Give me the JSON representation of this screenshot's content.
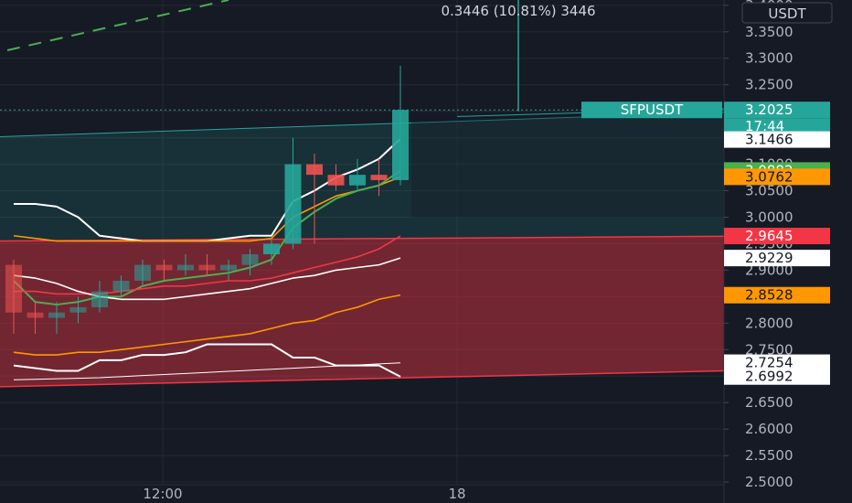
{
  "chart_data": {
    "type": "candlestick",
    "symbol": "SFPUSDT",
    "currency": "USDT",
    "measure_text": "0.3446 (10.81%) 3446",
    "countdown": "17:44",
    "x_tick_labels": [
      "12:00",
      "18"
    ],
    "y_tick_labels": [
      "3.4000",
      "3.3500",
      "3.3000",
      "3.2500",
      "3.2000",
      "3.1500",
      "3.1000",
      "3.0500",
      "3.0000",
      "2.9500",
      "2.9000",
      "2.8500",
      "2.8000",
      "2.7500",
      "2.7000",
      "2.6500",
      "2.6000",
      "2.5500",
      "2.5000"
    ],
    "y_range": [
      2.495,
      3.41
    ],
    "candles": [
      {
        "o": 2.91,
        "h": 2.92,
        "l": 2.78,
        "c": 2.82
      },
      {
        "o": 2.82,
        "h": 2.84,
        "l": 2.78,
        "c": 2.81
      },
      {
        "o": 2.81,
        "h": 2.84,
        "l": 2.78,
        "c": 2.82
      },
      {
        "o": 2.82,
        "h": 2.85,
        "l": 2.8,
        "c": 2.83
      },
      {
        "o": 2.83,
        "h": 2.88,
        "l": 2.82,
        "c": 2.86
      },
      {
        "o": 2.86,
        "h": 2.89,
        "l": 2.85,
        "c": 2.88
      },
      {
        "o": 2.88,
        "h": 2.92,
        "l": 2.87,
        "c": 2.91
      },
      {
        "o": 2.91,
        "h": 2.92,
        "l": 2.88,
        "c": 2.9
      },
      {
        "o": 2.9,
        "h": 2.93,
        "l": 2.89,
        "c": 2.91
      },
      {
        "o": 2.91,
        "h": 2.93,
        "l": 2.89,
        "c": 2.9
      },
      {
        "o": 2.9,
        "h": 2.92,
        "l": 2.88,
        "c": 2.91
      },
      {
        "o": 2.91,
        "h": 2.94,
        "l": 2.89,
        "c": 2.93
      },
      {
        "o": 2.93,
        "h": 2.96,
        "l": 2.91,
        "c": 2.95
      },
      {
        "o": 2.95,
        "h": 3.15,
        "l": 2.94,
        "c": 3.1
      },
      {
        "o": 3.1,
        "h": 3.12,
        "l": 2.95,
        "c": 3.08
      },
      {
        "o": 3.08,
        "h": 3.1,
        "l": 3.05,
        "c": 3.06
      },
      {
        "o": 3.06,
        "h": 3.11,
        "l": 3.05,
        "c": 3.08
      },
      {
        "o": 3.08,
        "h": 3.11,
        "l": 3.04,
        "c": 3.07
      },
      {
        "o": 3.07,
        "h": 3.286,
        "l": 3.06,
        "c": 3.2025
      }
    ],
    "channel_upper": {
      "top_line": [
        3.152,
        3.198
      ],
      "bottom_line": [
        2.955,
        2.964
      ],
      "color": "#26a69a"
    },
    "channel_lower": {
      "top_line": [
        2.955,
        2.964
      ],
      "bottom_line": [
        2.68,
        2.71
      ],
      "color": "#f23645"
    },
    "price_badges": [
      {
        "label": "SFPUSDT",
        "value": "3.2025",
        "price": 3.2025,
        "bg": "#26a69a",
        "fg": "#ffffff"
      },
      {
        "label": "",
        "value": "3.1466",
        "price": 3.1466,
        "bg": "#ffffff",
        "fg": "#131722"
      },
      {
        "label": "",
        "value": "3.0882",
        "price": 3.0882,
        "bg": "#4caf50",
        "fg": "#ffffff"
      },
      {
        "label": "",
        "value": "3.0762",
        "price": 3.0762,
        "bg": "#ff9800",
        "fg": "#131722"
      },
      {
        "label": "",
        "value": "2.9645",
        "price": 2.9645,
        "bg": "#f23645",
        "fg": "#ffffff"
      },
      {
        "label": "",
        "value": "2.9229",
        "price": 2.9229,
        "bg": "#ffffff",
        "fg": "#131722"
      },
      {
        "label": "",
        "value": "2.8528",
        "price": 2.8528,
        "bg": "#ff9800",
        "fg": "#131722"
      },
      {
        "label": "",
        "value": "2.7254",
        "price": 2.7254,
        "bg": "#ffffff",
        "fg": "#131722"
      },
      {
        "label": "",
        "value": "2.6992",
        "price": 2.6992,
        "bg": "#ffffff",
        "fg": "#131722"
      }
    ],
    "colors": {
      "up": "#26a69a",
      "down": "#ef5350",
      "background": "#161a25",
      "grid": "#242832",
      "text": "#b2b5be"
    }
  }
}
